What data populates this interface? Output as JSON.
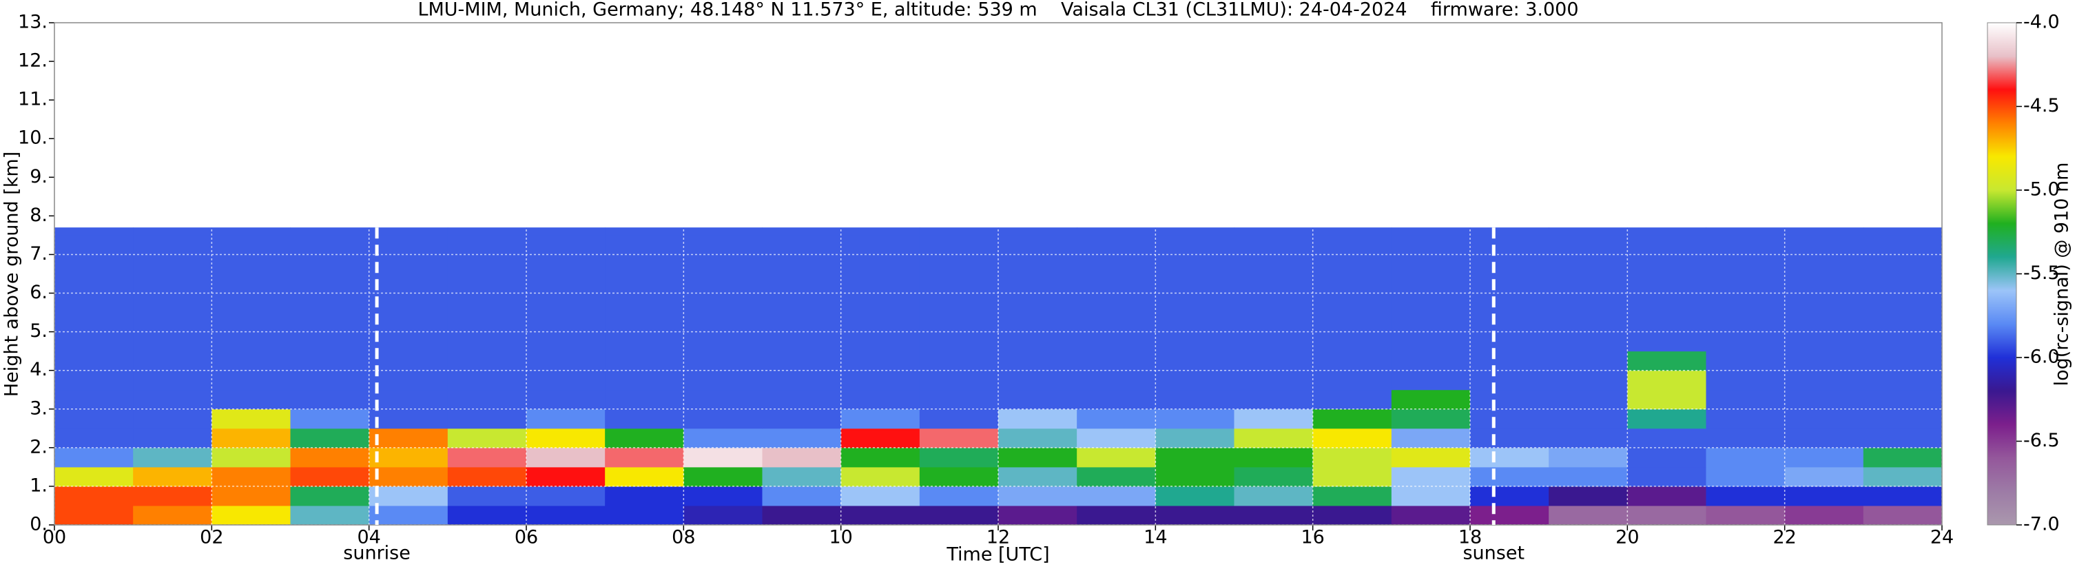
{
  "chart_data": {
    "type": "heatmap",
    "title": "LMU-MIM, Munich, Germany; 48.148° N 11.573° E, altitude: 539 m    Vaisala CL31 (CL31LMU): 24-04-2024    firmware: 3.000",
    "x_label": "Time [UTC]",
    "y_label": "Height above ground [km]",
    "colorbar_label": "log(rc-signal) @ 910 nm",
    "xlim": [
      0,
      24
    ],
    "ylim": [
      0,
      13
    ],
    "xticks": [
      {
        "value": 0,
        "label": "00"
      },
      {
        "value": 2,
        "label": "02"
      },
      {
        "value": 4,
        "label": "04"
      },
      {
        "value": 6,
        "label": "06"
      },
      {
        "value": 8,
        "label": "08"
      },
      10,
      12,
      14,
      16,
      18,
      20,
      22,
      24
    ],
    "yticks": [
      {
        "value": 0,
        "label": "0."
      },
      {
        "value": 1,
        "label": "1."
      },
      {
        "value": 2,
        "label": "2."
      },
      {
        "value": 3,
        "label": "3."
      },
      {
        "value": 4,
        "label": "4."
      },
      {
        "value": 5,
        "label": "5."
      },
      {
        "value": 6,
        "label": "6."
      },
      {
        "value": 7,
        "label": "7."
      },
      {
        "value": 8,
        "label": "8."
      },
      {
        "value": 9,
        "label": "9."
      },
      {
        "value": 10,
        "label": "10."
      },
      {
        "value": 11,
        "label": "11."
      },
      {
        "value": 12,
        "label": "12."
      },
      {
        "value": 13,
        "label": "13."
      }
    ],
    "clim": [
      -7,
      -4
    ],
    "cticks": [
      {
        "value": -7,
        "label": "-7.0"
      },
      -6.5,
      {
        "value": -6,
        "label": "-6.0"
      },
      -5.5,
      {
        "value": -5,
        "label": "-5.0"
      },
      -4.5,
      {
        "value": -4,
        "label": "-4.0"
      }
    ],
    "colormap": [
      "#aa98ad",
      "#9d7ba6",
      "#94579b",
      "#7c1f8c",
      "#3a1890",
      "#2030d8",
      "#5a8af4",
      "#9cc4f8",
      "#20a890",
      "#20b020",
      "#c8e830",
      "#f8e800",
      "#ff8000",
      "#ff1010",
      "#e8c0c8",
      "#ffffff"
    ],
    "grid": true,
    "annotations": [
      {
        "x": 4.1,
        "label": "sunrise"
      },
      {
        "x": 18.3,
        "label": "sunset"
      }
    ],
    "x_bins": [
      0,
      1,
      2,
      3,
      4,
      5,
      6,
      7,
      8,
      9,
      10,
      11,
      12,
      13,
      14,
      15,
      16,
      17,
      18,
      19,
      20,
      21,
      22,
      23,
      24
    ],
    "y_bins": [
      0,
      0.5,
      1,
      1.5,
      2,
      2.5,
      3,
      3.5,
      4,
      4.5,
      5,
      5.5,
      6,
      6.5,
      7,
      7.5,
      7.7
    ],
    "z": [
      [
        -4.5,
        -4.6,
        -4.8,
        -5.5,
        -5.8,
        -6.0,
        -6.0,
        -6.0,
        -6.1,
        -6.2,
        -6.2,
        -6.2,
        -6.3,
        -6.2,
        -6.2,
        -6.2,
        -6.2,
        -6.3,
        -6.4,
        -6.7,
        -6.7,
        -6.6,
        -6.5,
        -6.6
      ],
      [
        -4.5,
        -4.5,
        -4.6,
        -5.3,
        -5.6,
        -5.9,
        -5.9,
        -6.0,
        -6.0,
        -5.8,
        -5.6,
        -5.8,
        -5.7,
        -5.7,
        -5.4,
        -5.5,
        -5.3,
        -5.6,
        -6.0,
        -6.2,
        -6.3,
        -6.0,
        -6.0,
        -6.0
      ],
      [
        -4.9,
        -4.7,
        -4.6,
        -4.5,
        -4.6,
        -4.5,
        -4.4,
        -4.8,
        -5.2,
        -5.5,
        -5.0,
        -5.2,
        -5.5,
        -5.3,
        -5.2,
        -5.3,
        -5.0,
        -5.6,
        -5.8,
        -5.8,
        -5.9,
        -5.8,
        -5.7,
        -5.5
      ],
      [
        -5.8,
        -5.5,
        -5.0,
        -4.6,
        -4.7,
        -4.3,
        -4.2,
        -4.3,
        -4.1,
        -4.2,
        -5.2,
        -5.3,
        -5.2,
        -5.0,
        -5.2,
        -5.2,
        -5.0,
        -4.9,
        -5.6,
        -5.7,
        -5.9,
        -5.8,
        -5.8,
        -5.3
      ],
      [
        -5.9,
        -5.9,
        -4.7,
        -5.3,
        -4.6,
        -5.0,
        -4.8,
        -5.2,
        -5.8,
        -5.8,
        -4.4,
        -4.3,
        -5.5,
        -5.6,
        -5.5,
        -5.0,
        -4.8,
        -5.7,
        -5.9,
        -5.9,
        -5.9,
        -5.9,
        -5.9,
        -5.9
      ],
      [
        -5.9,
        -5.9,
        -4.9,
        -5.8,
        -5.9,
        -5.9,
        -5.8,
        -5.9,
        -5.9,
        -5.9,
        -5.8,
        -5.9,
        -5.6,
        -5.8,
        -5.8,
        -5.6,
        -5.2,
        -5.3,
        -5.9,
        -5.9,
        -5.4,
        -5.9,
        -5.9,
        -5.9
      ],
      [
        -5.9,
        -5.9,
        -5.9,
        -5.9,
        -5.9,
        -5.9,
        -5.9,
        -5.9,
        -5.9,
        -5.9,
        -5.9,
        -5.9,
        -5.9,
        -5.9,
        -5.9,
        -5.9,
        -5.9,
        -5.2,
        -5.9,
        -5.9,
        -5.0,
        -5.9,
        -5.9,
        -5.9
      ],
      [
        -5.9,
        -5.9,
        -5.9,
        -5.9,
        -5.9,
        -5.9,
        -5.9,
        -5.9,
        -5.9,
        -5.9,
        -5.9,
        -5.9,
        -5.9,
        -5.9,
        -5.9,
        -5.9,
        -5.9,
        -5.9,
        -5.9,
        -5.9,
        -5.0,
        -5.9,
        -5.9,
        -5.9
      ],
      [
        -5.9,
        -5.9,
        -5.9,
        -5.9,
        -5.9,
        -5.9,
        -5.9,
        -5.9,
        -5.9,
        -5.9,
        -5.9,
        -5.9,
        -5.9,
        -5.9,
        -5.9,
        -5.9,
        -5.9,
        -5.9,
        -5.9,
        -5.9,
        -5.3,
        -5.9,
        -5.9,
        -5.9
      ],
      [
        -5.9,
        -5.9,
        -5.9,
        -5.9,
        -5.9,
        -5.9,
        -5.9,
        -5.9,
        -5.9,
        -5.9,
        -5.9,
        -5.9,
        -5.9,
        -5.9,
        -5.9,
        -5.9,
        -5.9,
        -5.9,
        -5.9,
        -5.9,
        -5.9,
        -5.9,
        -5.9,
        -5.9
      ],
      [
        -5.9,
        -5.9,
        -5.9,
        -5.9,
        -5.9,
        -5.9,
        -5.9,
        -5.9,
        -5.9,
        -5.9,
        -5.9,
        -5.9,
        -5.9,
        -5.9,
        -5.9,
        -5.9,
        -5.9,
        -5.9,
        -5.9,
        -5.9,
        -5.9,
        -5.9,
        -5.9,
        -5.9
      ],
      [
        -5.9,
        -5.9,
        -5.9,
        -5.9,
        -5.9,
        -5.9,
        -5.9,
        -5.9,
        -5.9,
        -5.9,
        -5.9,
        -5.9,
        -5.9,
        -5.9,
        -5.9,
        -5.9,
        -5.9,
        -5.9,
        -5.9,
        -5.9,
        -5.9,
        -5.9,
        -5.9,
        -5.9
      ],
      [
        -5.9,
        -5.9,
        -5.9,
        -5.9,
        -5.9,
        -5.9,
        -5.9,
        -5.9,
        -5.9,
        -5.9,
        -5.9,
        -5.9,
        -5.9,
        -5.9,
        -5.9,
        -5.9,
        -5.9,
        -5.9,
        -5.9,
        -5.9,
        -5.9,
        -5.9,
        -5.9,
        -5.9
      ],
      [
        -5.9,
        -5.9,
        -5.9,
        -5.9,
        -5.9,
        -5.9,
        -5.9,
        -5.9,
        -5.9,
        -5.9,
        -5.9,
        -5.9,
        -5.9,
        -5.9,
        -5.9,
        -5.9,
        -5.9,
        -5.9,
        -5.9,
        -5.9,
        -5.9,
        -5.9,
        -5.9,
        -5.9
      ],
      [
        -5.9,
        -5.9,
        -5.9,
        -5.9,
        -5.9,
        -5.9,
        -5.9,
        -5.9,
        -5.9,
        -5.9,
        -5.9,
        -5.9,
        -5.9,
        -5.9,
        -5.9,
        -5.9,
        -5.9,
        -5.9,
        -5.9,
        -5.9,
        -5.9,
        -5.9,
        -5.9,
        -5.9
      ],
      [
        -5.9,
        -5.9,
        -5.9,
        -5.9,
        -5.9,
        -5.9,
        -5.9,
        -5.9,
        -5.9,
        -5.9,
        -5.9,
        -5.9,
        -5.9,
        -5.9,
        -5.9,
        -5.9,
        -5.9,
        -5.9,
        -5.9,
        -5.9,
        -5.9,
        -5.9,
        -5.9,
        -5.9
      ]
    ]
  }
}
